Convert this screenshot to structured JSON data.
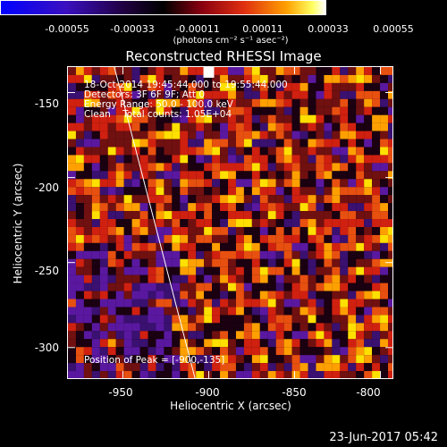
{
  "colorbar": {
    "ticks": [
      "-0.00055",
      "-0.00033",
      "-0.00011",
      "0.00011",
      "0.00033",
      "0.00055"
    ],
    "units": "(photons cm⁻² s⁻¹ asec⁻²)"
  },
  "title": "Reconstructed RHESSI Image",
  "info": {
    "line1": "18-Oct-2014 19:45:44.000 to 19:55:44.000",
    "line2": "Detectors: 3F 6F 9F; Att 0",
    "line3": "Energy Range: 50.0 - 100.0 keV",
    "line4": "Clean    Total counts: 1.05E+04",
    "peak": "Position of Peak = [-900,-135]"
  },
  "axes": {
    "xlabel": "Heliocentric X (arcsec)",
    "ylabel": "Heliocentric Y (arcsec)",
    "xticks": [
      "-950",
      "-900",
      "-850",
      "-800"
    ],
    "yticks": [
      "-150",
      "-200",
      "-250",
      "-300"
    ],
    "xlim": [
      -982,
      -793
    ],
    "ylim": [
      -318,
      -135
    ]
  },
  "timestamp": "23-Jun-2017 05:42",
  "chart_data": {
    "type": "heatmap",
    "title": "Reconstructed RHESSI Image",
    "xlabel": "Heliocentric X (arcsec)",
    "ylabel": "Heliocentric Y (arcsec)",
    "xlim": [
      -982,
      -793
    ],
    "ylim": [
      -318,
      -135
    ],
    "zlim": [
      -0.00055,
      0.00055
    ],
    "colorbar_ticks": [
      -0.00055,
      -0.00033,
      -0.00011,
      0.00011,
      0.00033,
      0.00055
    ],
    "peak": [
      -900,
      -135
    ],
    "limb_line": [
      [
        -955,
        -135
      ],
      [
        -908,
        -318
      ]
    ],
    "colors": {
      "negative": "#5a18a0",
      "low": "#1a0010",
      "mid": "#d02010",
      "high": "#ffe000",
      "max": "#ffffff"
    }
  }
}
